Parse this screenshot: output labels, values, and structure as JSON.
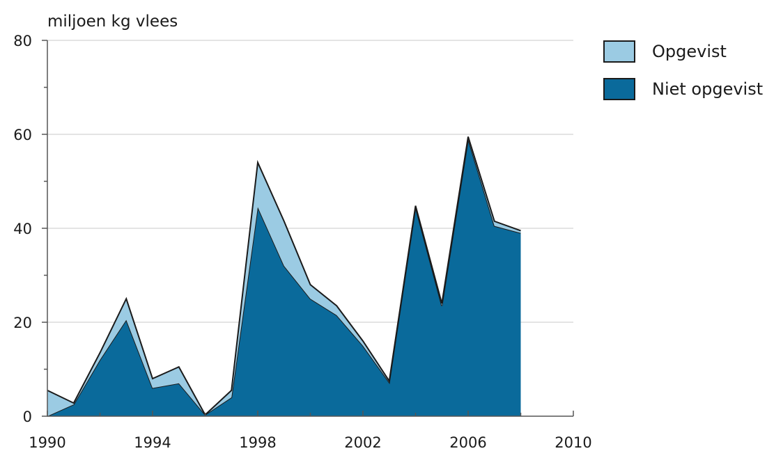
{
  "chart_data": {
    "type": "area",
    "stacked": true,
    "ylabel": "miljoen kg vlees",
    "xlabel": "",
    "xlim": [
      1990,
      2010
    ],
    "ylim": [
      0,
      80
    ],
    "xticks_labeled": [
      1990,
      1994,
      1998,
      2002,
      2006,
      2010
    ],
    "yticks_labeled": [
      0,
      20,
      40,
      60,
      80
    ],
    "grid": "horizontal",
    "legend_position": "right",
    "x": [
      1990,
      1991,
      1992,
      1993,
      1994,
      1995,
      1996,
      1997,
      1998,
      1999,
      2000,
      2001,
      2002,
      2003,
      2004,
      2005,
      2006,
      2007,
      2008
    ],
    "series": [
      {
        "name": "Niet opgevist",
        "color": "#0a6a9b",
        "values": [
          0,
          2.5,
          12,
          20.5,
          6,
          7,
          0.3,
          4,
          44.5,
          32,
          25,
          21.5,
          15,
          7.2,
          44.5,
          23.5,
          59,
          40.5,
          39
        ]
      },
      {
        "name": "Opgevist",
        "color": "#9bcbe3",
        "values": [
          5.5,
          0.3,
          1.5,
          4.5,
          2,
          3.5,
          0,
          1.5,
          9.5,
          9.5,
          3,
          2,
          1,
          0.3,
          0.3,
          0.5,
          0.5,
          1,
          0.5
        ]
      }
    ]
  }
}
